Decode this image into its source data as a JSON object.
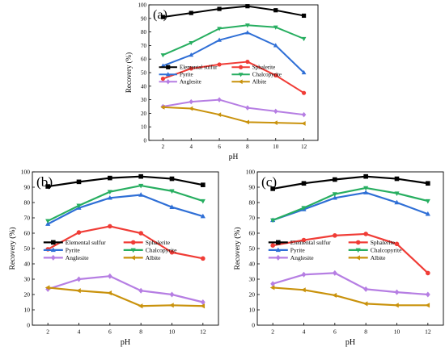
{
  "chart_data": [
    {
      "type": "line",
      "panel_label": "(a)",
      "xlabel": "pH",
      "ylabel": "Recovery (%)",
      "x": [
        2,
        4,
        6,
        8,
        10,
        12
      ],
      "xlim": [
        1,
        13
      ],
      "ylim": [
        0,
        100
      ],
      "xticks": [
        "2",
        "4",
        "6",
        "8",
        "10",
        "12"
      ],
      "yticks": [
        "0",
        "10",
        "20",
        "30",
        "40",
        "50",
        "60",
        "70",
        "80",
        "90",
        "100"
      ],
      "legend_placement": "center-left",
      "series": [
        {
          "name": "Elemental sulfur",
          "color": "#000000",
          "marker": "square",
          "values": [
            91,
            94,
            97,
            99,
            96,
            92
          ]
        },
        {
          "name": "Sphalerite",
          "color": "#f03c36",
          "marker": "circle",
          "values": [
            45.5,
            53,
            56,
            58,
            48,
            35
          ]
        },
        {
          "name": "Pyrite",
          "color": "#2f6fd6",
          "marker": "triangle-up",
          "values": [
            55,
            63,
            74,
            79.5,
            70,
            50
          ]
        },
        {
          "name": "Chalcopyrite",
          "color": "#27ae60",
          "marker": "triangle-down",
          "values": [
            63,
            72,
            82.5,
            85,
            83.5,
            75
          ]
        },
        {
          "name": "Anglesite",
          "color": "#b67ee3",
          "marker": "diamond",
          "values": [
            25,
            28.5,
            30,
            24,
            21.5,
            19
          ]
        },
        {
          "name": "Albite",
          "color": "#c9920c",
          "marker": "triangle-left",
          "values": [
            24.5,
            23.5,
            19,
            13.5,
            13,
            12.5
          ]
        }
      ]
    },
    {
      "type": "line",
      "panel_label": "(b)",
      "xlabel": "pH",
      "ylabel": "Recovery (%)",
      "x": [
        2,
        4,
        6,
        8,
        10,
        12
      ],
      "xlim": [
        1,
        13
      ],
      "ylim": [
        0,
        100
      ],
      "xticks": [
        "2",
        "4",
        "6",
        "8",
        "10",
        "12"
      ],
      "yticks": [
        "0",
        "10",
        "20",
        "30",
        "40",
        "50",
        "60",
        "70",
        "80",
        "90",
        "100"
      ],
      "legend_placement": "center-left",
      "series": [
        {
          "name": "Elemental sulfur",
          "color": "#000000",
          "marker": "square",
          "values": [
            90.5,
            93.5,
            96,
            97,
            95.5,
            91.5
          ]
        },
        {
          "name": "Sphalerite",
          "color": "#f03c36",
          "marker": "circle",
          "values": [
            49.5,
            60.5,
            64.5,
            60,
            47.5,
            43.5
          ]
        },
        {
          "name": "Pyrite",
          "color": "#2f6fd6",
          "marker": "triangle-up",
          "values": [
            66,
            76.5,
            83,
            85,
            77,
            71
          ]
        },
        {
          "name": "Chalcopyrite",
          "color": "#27ae60",
          "marker": "triangle-down",
          "values": [
            68,
            78,
            87,
            91,
            87.5,
            81
          ]
        },
        {
          "name": "Anglesite",
          "color": "#b67ee3",
          "marker": "diamond",
          "values": [
            23.5,
            30,
            32,
            22.5,
            20,
            15
          ]
        },
        {
          "name": "Albite",
          "color": "#c9920c",
          "marker": "triangle-left",
          "values": [
            24.5,
            22.5,
            21,
            12.5,
            13,
            12.5
          ]
        }
      ]
    },
    {
      "type": "line",
      "panel_label": "(c)",
      "xlabel": "pH",
      "ylabel": "Recovery (%)",
      "x": [
        2,
        4,
        6,
        8,
        10,
        12
      ],
      "xlim": [
        1,
        13
      ],
      "ylim": [
        0,
        100
      ],
      "xticks": [
        "2",
        "4",
        "6",
        "8",
        "10",
        "12"
      ],
      "yticks": [
        "0",
        "10",
        "20",
        "30",
        "40",
        "50",
        "60",
        "70",
        "80",
        "90",
        "100"
      ],
      "legend_placement": "center-left",
      "series": [
        {
          "name": "Elemental sulfur",
          "color": "#000000",
          "marker": "square",
          "values": [
            89,
            92.5,
            95,
            97,
            95.5,
            92.5
          ]
        },
        {
          "name": "Sphalerite",
          "color": "#f03c36",
          "marker": "circle",
          "values": [
            52,
            55.5,
            58.5,
            59.5,
            53,
            34
          ]
        },
        {
          "name": "Pyrite",
          "color": "#2f6fd6",
          "marker": "triangle-up",
          "values": [
            68.5,
            75.5,
            83,
            86.5,
            80,
            72.5
          ]
        },
        {
          "name": "Chalcopyrite",
          "color": "#27ae60",
          "marker": "triangle-down",
          "values": [
            68.5,
            76.5,
            85.5,
            89.5,
            86,
            81
          ]
        },
        {
          "name": "Anglesite",
          "color": "#b67ee3",
          "marker": "diamond",
          "values": [
            27,
            33,
            34,
            23.5,
            21.5,
            20
          ]
        },
        {
          "name": "Albite",
          "color": "#c9920c",
          "marker": "triangle-left",
          "values": [
            24.5,
            23,
            19.5,
            14,
            13,
            13
          ]
        }
      ]
    }
  ]
}
